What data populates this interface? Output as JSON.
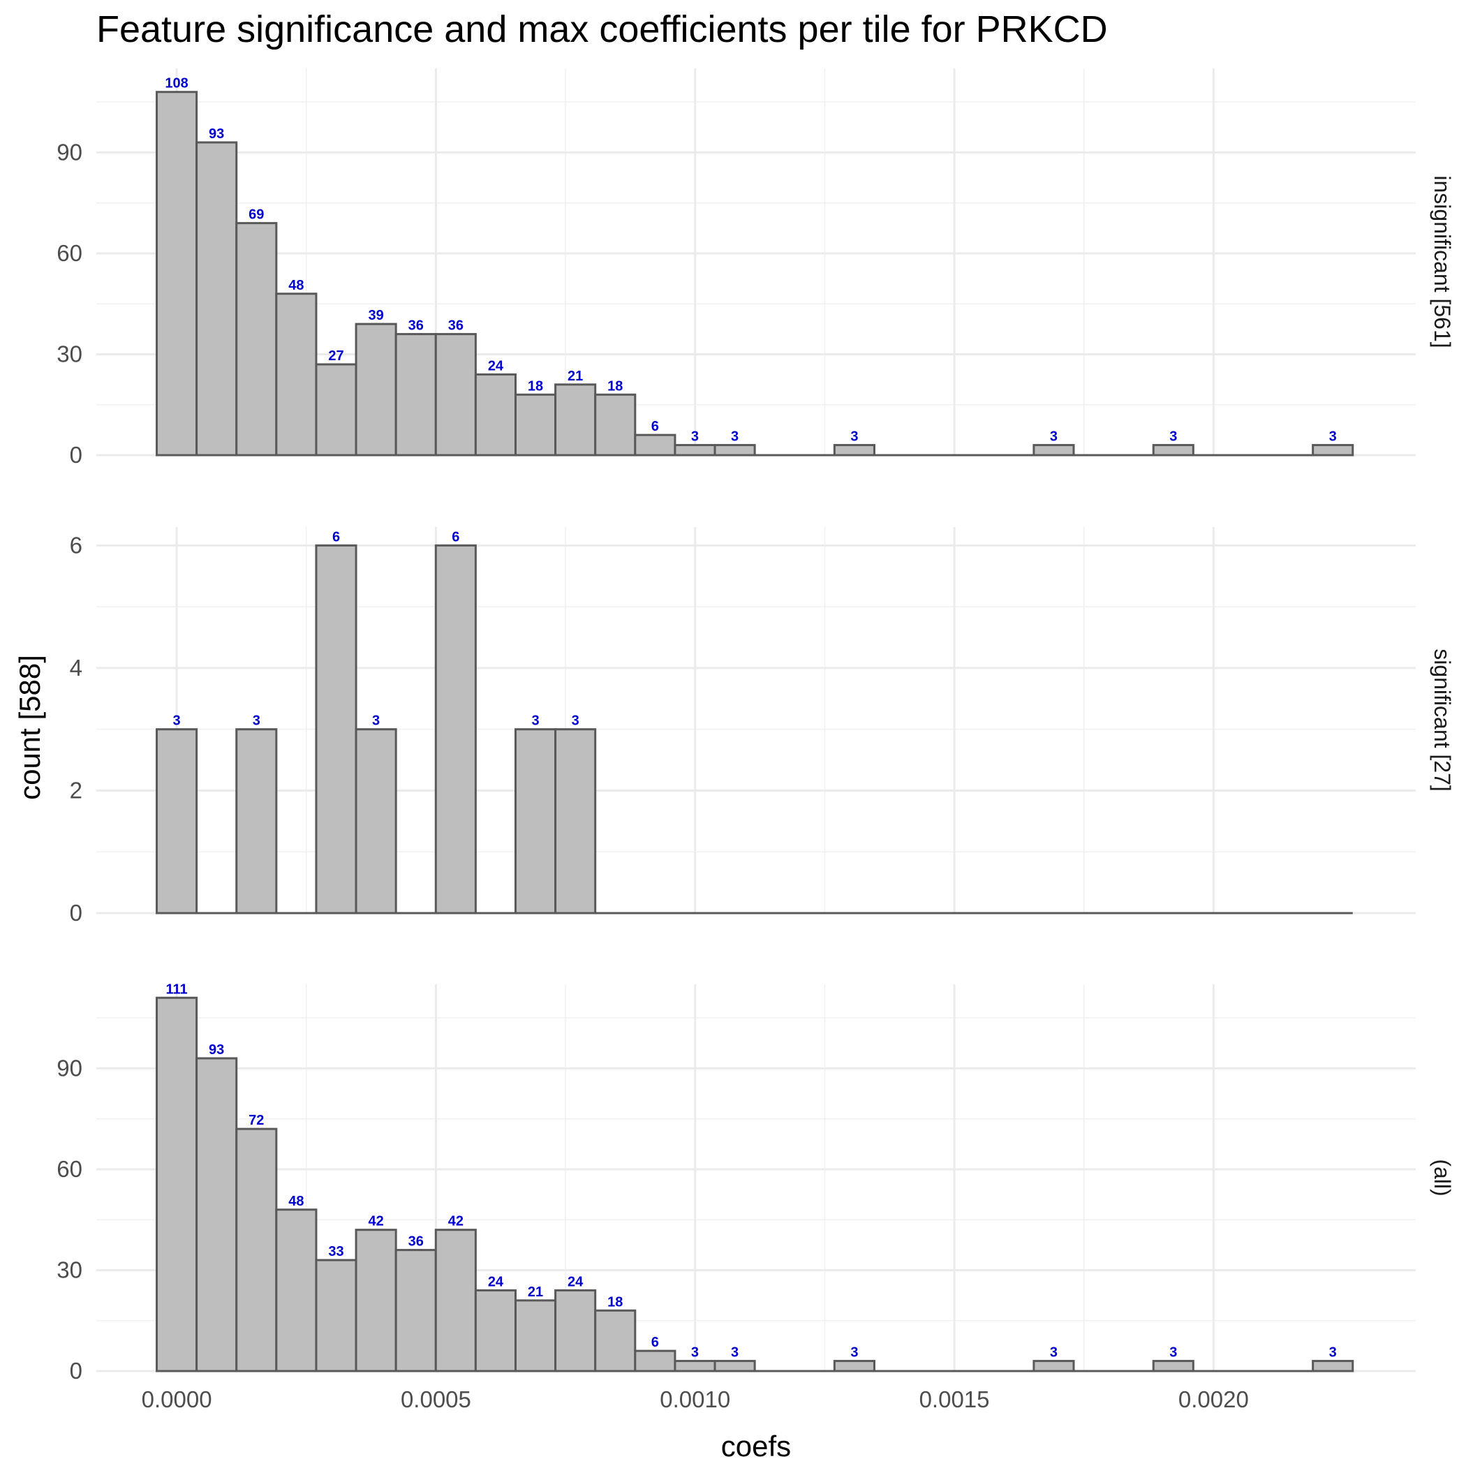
{
  "chart_data": {
    "type": "bar",
    "title": "Feature significance and max coefficients per tile for PRKCD",
    "xlabel": "coefs",
    "ylabel": "count [588]",
    "xlim": [
      -0.000155,
      0.00239
    ],
    "x_ticks": [
      0.0,
      0.0005,
      0.001,
      0.0015,
      0.002
    ],
    "x_tick_labels": [
      "0.0000",
      "0.0005",
      "0.0010",
      "0.0015",
      "0.0020"
    ],
    "bin_width": 7.69e-05,
    "x_start": -3.85e-05,
    "grid": true,
    "label_color": "#0000cc",
    "bar_fill": "#bebebe",
    "bar_stroke": "#595959",
    "panels": [
      {
        "strip": "insignificant [561]",
        "ylim": [
          0,
          115
        ],
        "y_ticks": [
          0,
          30,
          60,
          90
        ],
        "y_tick_labels": [
          "0",
          "30",
          "60",
          "90"
        ],
        "values": [
          108,
          93,
          69,
          48,
          27,
          39,
          36,
          36,
          24,
          18,
          21,
          18,
          6,
          3,
          3,
          0,
          0,
          3,
          0,
          0,
          0,
          0,
          3,
          0,
          0,
          3,
          0,
          0,
          0,
          3
        ],
        "labels": [
          "108",
          "93",
          "69",
          "48",
          "27",
          "39",
          "36",
          "36",
          "24",
          "18",
          "21",
          "18",
          "6",
          "3",
          "3",
          "",
          "",
          "3",
          "",
          "",
          "",
          "",
          "3",
          "",
          "",
          "3",
          "",
          "",
          "",
          "3"
        ]
      },
      {
        "strip": "significant [27]",
        "ylim": [
          0,
          6.3
        ],
        "y_ticks": [
          0,
          2,
          4,
          6
        ],
        "y_tick_labels": [
          "0",
          "2",
          "4",
          "6"
        ],
        "values": [
          3,
          0,
          3,
          0,
          6,
          3,
          0,
          6,
          0,
          3,
          3,
          0,
          0,
          0,
          0,
          0,
          0,
          0,
          0,
          0,
          0,
          0,
          0,
          0,
          0,
          0,
          0,
          0,
          0,
          0
        ],
        "labels": [
          "3",
          "",
          "3",
          "",
          "6",
          "3",
          "",
          "6",
          "",
          "3",
          "3",
          "",
          "",
          "",
          "",
          "",
          "",
          "",
          "",
          "",
          "",
          "",
          "",
          "",
          "",
          "",
          "",
          "",
          "",
          ""
        ]
      },
      {
        "strip": "(all)",
        "ylim": [
          0,
          115
        ],
        "y_ticks": [
          0,
          30,
          60,
          90
        ],
        "y_tick_labels": [
          "0",
          "30",
          "60",
          "90"
        ],
        "values": [
          111,
          93,
          72,
          48,
          33,
          42,
          36,
          42,
          24,
          21,
          24,
          18,
          6,
          3,
          3,
          0,
          0,
          3,
          0,
          0,
          0,
          0,
          3,
          0,
          0,
          3,
          0,
          0,
          0,
          3
        ],
        "labels": [
          "111",
          "93",
          "72",
          "48",
          "33",
          "42",
          "36",
          "42",
          "24",
          "21",
          "24",
          "18",
          "6",
          "3",
          "3",
          "",
          "",
          "3",
          "",
          "",
          "",
          "",
          "3",
          "",
          "",
          "3",
          "",
          "",
          "",
          "3"
        ]
      }
    ]
  }
}
